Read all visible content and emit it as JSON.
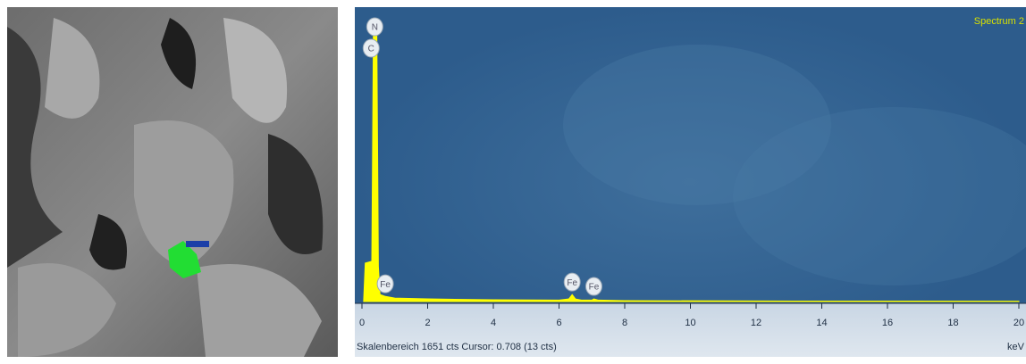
{
  "chart_data": {
    "type": "spectrum",
    "title": "Spectrum 2",
    "footer": "Skalenbereich 1651 cts Cursor: 0.708 (13 cts)",
    "x_label": "keV",
    "x": [
      0.05,
      0.1,
      0.3,
      0.35,
      0.4,
      0.45,
      0.5,
      0.55,
      0.7,
      1.0,
      2.0,
      4.0,
      6.0,
      6.3,
      6.4,
      6.5,
      6.7,
      7.0,
      7.06,
      7.2,
      8,
      12,
      20
    ],
    "values": [
      0,
      220,
      230,
      1590,
      1590,
      1590,
      200,
      40,
      30,
      20,
      15,
      10,
      8,
      15,
      40,
      15,
      8,
      8,
      15,
      8,
      5,
      3,
      2
    ],
    "color": "#ffff00",
    "xlim": [
      0,
      20.2
    ],
    "ylim": [
      0,
      1651
    ],
    "xticks": [
      0,
      2,
      4,
      6,
      8,
      10,
      12,
      14,
      16,
      18,
      20
    ],
    "annotations": [
      {
        "text": "N",
        "x": 0.39
      },
      {
        "text": "C",
        "x": 0.28
      },
      {
        "text": "Fe",
        "x": 0.71
      },
      {
        "text": "Fe",
        "x": 6.4
      },
      {
        "text": "Fe",
        "x": 7.06
      }
    ]
  }
}
